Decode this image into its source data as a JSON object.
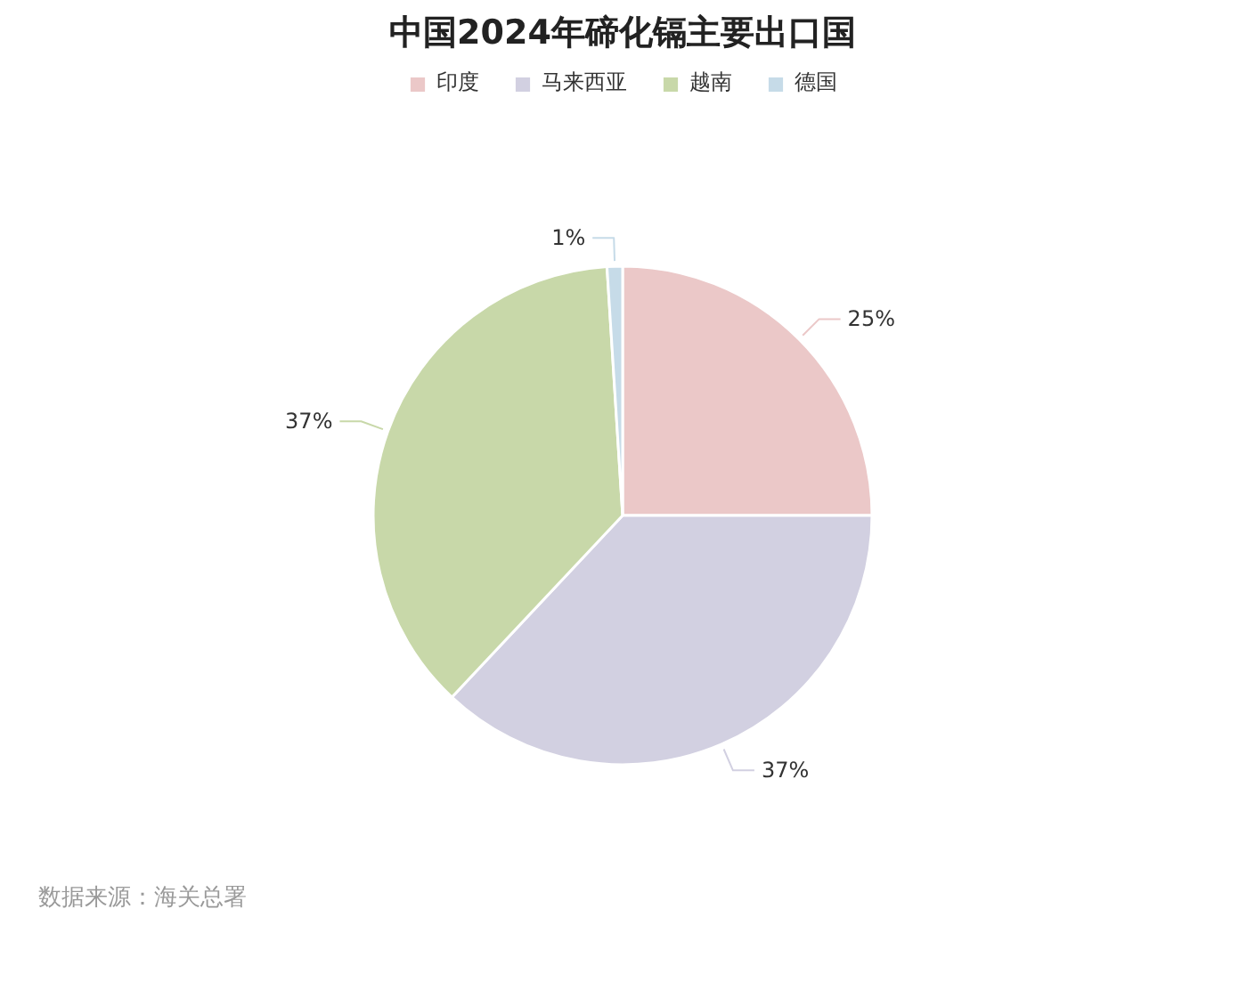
{
  "chart_data": {
    "type": "pie",
    "title": "中国2024年碲化镉主要出口国",
    "categories": [
      "印度",
      "马来西亚",
      "越南",
      "德国"
    ],
    "values": [
      25,
      37,
      37,
      1
    ],
    "colors": [
      "#ebc8c8",
      "#d2d0e1",
      "#c8d8a9",
      "#c6dbe8"
    ],
    "value_labels": [
      "25%",
      "37%",
      "37%",
      "1%"
    ],
    "legend": "top",
    "annotations": [
      "数据来源：海关总署"
    ]
  }
}
